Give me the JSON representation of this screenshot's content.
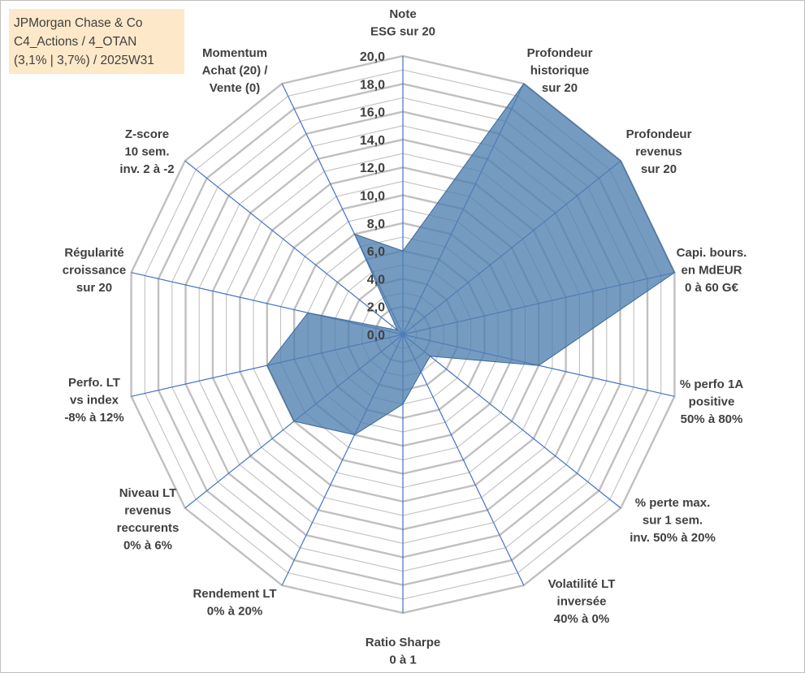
{
  "header": {
    "line1": "JPMorgan Chase & Co",
    "line2": "C4_Actions / 4_OTAN",
    "line3": "(3,1% | 3,7%) / 2025W31"
  },
  "colors": {
    "fill": "#4f7fb0",
    "axis": "#4472c4",
    "grid": "#c0c0c0",
    "title_bg": "#fde9c9"
  },
  "chart_data": {
    "type": "radar",
    "rmin": 0,
    "rmax": 20,
    "ticks": [
      "0,0",
      "2,0",
      "4,0",
      "6,0",
      "8,0",
      "10,0",
      "12,0",
      "14,0",
      "16,0",
      "18,0",
      "20,0"
    ],
    "axes": [
      {
        "label": [
          "Note",
          "ESG sur 20"
        ],
        "value": 6.0
      },
      {
        "label": [
          "Profondeur",
          "historique",
          "sur 20"
        ],
        "value": 20.0
      },
      {
        "label": [
          "Profondeur",
          "revenus",
          "sur 20"
        ],
        "value": 20.0
      },
      {
        "label": [
          "Capi. bours.",
          "en MdEUR",
          "0 à 60 G€"
        ],
        "value": 20.0
      },
      {
        "label": [
          "% perfo 1A",
          "positive",
          "50% à 80%"
        ],
        "value": 10.0
      },
      {
        "label": [
          "% perte max.",
          "sur 1 sem.",
          "inv. 50% à 20%"
        ],
        "value": 2.5
      },
      {
        "label": [
          "Volatilité LT",
          "inversée",
          "40% à 0%"
        ],
        "value": 3.0
      },
      {
        "label": [
          "Ratio Sharpe",
          "0 à 1"
        ],
        "value": 5.0
      },
      {
        "label": [
          "Rendement LT",
          "0% à 20%"
        ],
        "value": 8.0
      },
      {
        "label": [
          "Niveau LT",
          "revenus",
          "reccurents",
          "0% à 6%"
        ],
        "value": 10.0
      },
      {
        "label": [
          "Perfo. LT",
          "vs index",
          "-8% à 12%"
        ],
        "value": 10.0
      },
      {
        "label": [
          "Régularité",
          "croissance",
          "sur 20"
        ],
        "value": 7.0
      },
      {
        "label": [
          "Z-score",
          "10 sem.",
          "inv. 2 à -2"
        ],
        "value": 0.5
      },
      {
        "label": [
          "Momentum",
          "Achat (20) /",
          "Vente (0)"
        ],
        "value": 8.0
      }
    ]
  }
}
